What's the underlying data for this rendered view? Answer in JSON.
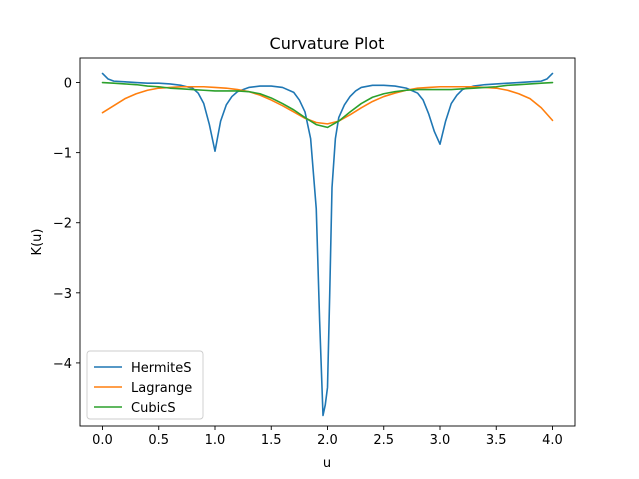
{
  "chart_data": {
    "type": "line",
    "title": "Curvature Plot",
    "xlabel": "u",
    "ylabel": "K(u)",
    "xlim": [
      -0.2,
      4.2
    ],
    "ylim": [
      -4.9,
      0.35
    ],
    "xticks": [
      0.0,
      0.5,
      1.0,
      1.5,
      2.0,
      2.5,
      3.0,
      3.5,
      4.0
    ],
    "xtick_labels": [
      "0.0",
      "0.5",
      "1.0",
      "1.5",
      "2.0",
      "2.5",
      "3.0",
      "3.5",
      "4.0"
    ],
    "yticks": [
      0,
      -1,
      -2,
      -3,
      -4
    ],
    "ytick_labels": [
      "0",
      "−1",
      "−2",
      "−3",
      "−4"
    ],
    "grid": false,
    "legend_position": "lower-left",
    "series": [
      {
        "name": "HermiteS",
        "color": "#1f77b4",
        "x": [
          0.0,
          0.05,
          0.1,
          0.2,
          0.3,
          0.4,
          0.5,
          0.6,
          0.7,
          0.8,
          0.85,
          0.9,
          0.95,
          1.0,
          1.05,
          1.1,
          1.15,
          1.2,
          1.3,
          1.4,
          1.5,
          1.6,
          1.7,
          1.75,
          1.8,
          1.85,
          1.9,
          1.93,
          1.96,
          1.98,
          2.0,
          2.02,
          2.04,
          2.07,
          2.1,
          2.15,
          2.2,
          2.25,
          2.3,
          2.4,
          2.5,
          2.6,
          2.7,
          2.8,
          2.85,
          2.9,
          2.95,
          3.0,
          3.05,
          3.1,
          3.15,
          3.2,
          3.3,
          3.4,
          3.5,
          3.6,
          3.7,
          3.8,
          3.9,
          3.95,
          4.0
        ],
        "y": [
          0.13,
          0.05,
          0.02,
          0.01,
          0.0,
          -0.01,
          -0.01,
          -0.02,
          -0.04,
          -0.08,
          -0.15,
          -0.3,
          -0.6,
          -0.98,
          -0.55,
          -0.32,
          -0.2,
          -0.13,
          -0.07,
          -0.05,
          -0.05,
          -0.07,
          -0.14,
          -0.25,
          -0.42,
          -0.8,
          -1.8,
          -3.4,
          -4.75,
          -4.6,
          -4.35,
          -3.0,
          -1.5,
          -0.8,
          -0.5,
          -0.32,
          -0.2,
          -0.12,
          -0.07,
          -0.04,
          -0.04,
          -0.05,
          -0.08,
          -0.15,
          -0.25,
          -0.45,
          -0.7,
          -0.88,
          -0.55,
          -0.3,
          -0.18,
          -0.1,
          -0.05,
          -0.03,
          -0.02,
          -0.01,
          0.0,
          0.01,
          0.02,
          0.05,
          0.13
        ]
      },
      {
        "name": "Lagrange",
        "color": "#ff7f0e",
        "x": [
          0.0,
          0.1,
          0.2,
          0.3,
          0.4,
          0.5,
          0.6,
          0.7,
          0.8,
          0.9,
          1.0,
          1.1,
          1.2,
          1.3,
          1.4,
          1.5,
          1.6,
          1.7,
          1.8,
          1.9,
          2.0,
          2.1,
          2.2,
          2.3,
          2.4,
          2.5,
          2.6,
          2.7,
          2.8,
          2.9,
          3.0,
          3.1,
          3.2,
          3.3,
          3.4,
          3.5,
          3.6,
          3.7,
          3.8,
          3.9,
          4.0
        ],
        "y": [
          -0.43,
          -0.33,
          -0.23,
          -0.16,
          -0.11,
          -0.08,
          -0.07,
          -0.06,
          -0.06,
          -0.06,
          -0.07,
          -0.08,
          -0.1,
          -0.13,
          -0.18,
          -0.25,
          -0.33,
          -0.42,
          -0.51,
          -0.57,
          -0.59,
          -0.55,
          -0.46,
          -0.36,
          -0.27,
          -0.2,
          -0.15,
          -0.11,
          -0.08,
          -0.07,
          -0.06,
          -0.06,
          -0.06,
          -0.06,
          -0.07,
          -0.08,
          -0.11,
          -0.16,
          -0.23,
          -0.36,
          -0.54
        ]
      },
      {
        "name": "CubicS",
        "color": "#2ca02c",
        "x": [
          0.0,
          0.1,
          0.2,
          0.3,
          0.4,
          0.5,
          0.6,
          0.7,
          0.8,
          0.9,
          1.0,
          1.1,
          1.2,
          1.3,
          1.4,
          1.5,
          1.6,
          1.7,
          1.8,
          1.9,
          2.0,
          2.1,
          2.2,
          2.3,
          2.4,
          2.5,
          2.6,
          2.7,
          2.8,
          2.9,
          3.0,
          3.1,
          3.2,
          3.3,
          3.4,
          3.5,
          3.6,
          3.7,
          3.8,
          3.9,
          4.0
        ],
        "y": [
          0.0,
          -0.01,
          -0.02,
          -0.03,
          -0.05,
          -0.06,
          -0.08,
          -0.09,
          -0.1,
          -0.11,
          -0.12,
          -0.12,
          -0.12,
          -0.13,
          -0.16,
          -0.22,
          -0.3,
          -0.39,
          -0.5,
          -0.6,
          -0.64,
          -0.55,
          -0.42,
          -0.3,
          -0.21,
          -0.16,
          -0.13,
          -0.11,
          -0.1,
          -0.1,
          -0.1,
          -0.1,
          -0.09,
          -0.08,
          -0.07,
          -0.06,
          -0.04,
          -0.03,
          -0.02,
          -0.01,
          0.0
        ]
      }
    ]
  }
}
